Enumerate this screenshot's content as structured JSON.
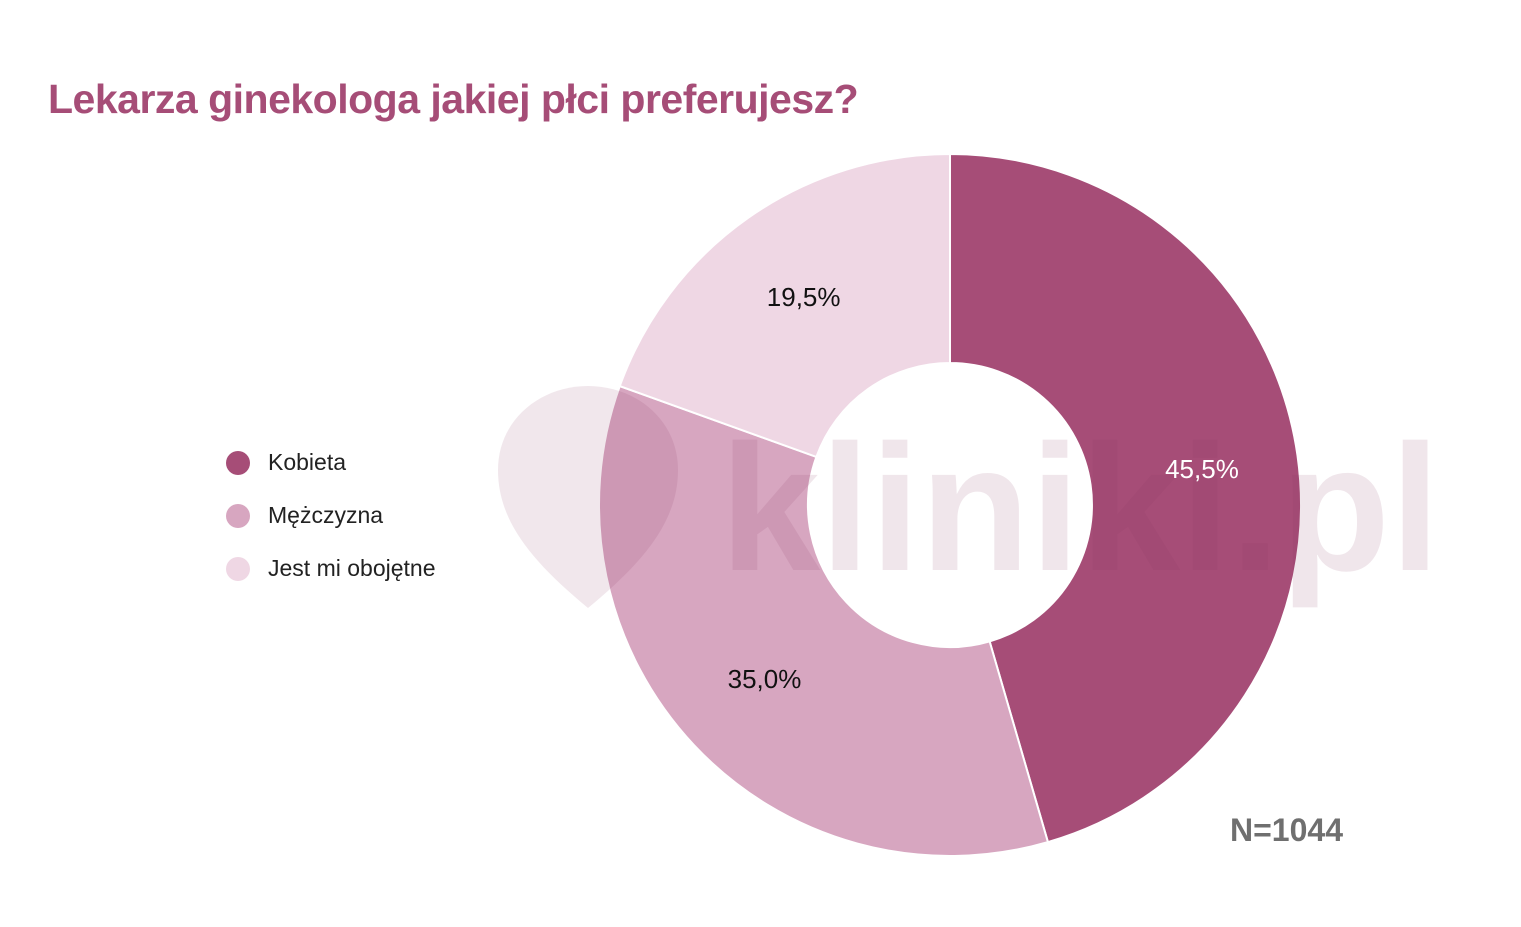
{
  "title": "Lekarza ginekologa jakiej płci preferujesz?",
  "footnote": "N=1044",
  "watermark": "kliniki.pl",
  "chart_data": {
    "type": "pie",
    "donut": true,
    "title": "Lekarza ginekologa jakiej płci preferujesz?",
    "categories": [
      "Kobieta",
      "Mężczyzna",
      "Jest mi obojętne"
    ],
    "values": [
      45.5,
      35.0,
      19.5
    ],
    "labels": [
      "45,5%",
      "35,0%",
      "19,5%"
    ],
    "colors": [
      "#A64D77",
      "#D7A6C0",
      "#EFD7E4"
    ],
    "label_colors": [
      "#ffffff",
      "#111111",
      "#111111"
    ],
    "legend_position": "left",
    "start_angle": "top, clockwise"
  }
}
